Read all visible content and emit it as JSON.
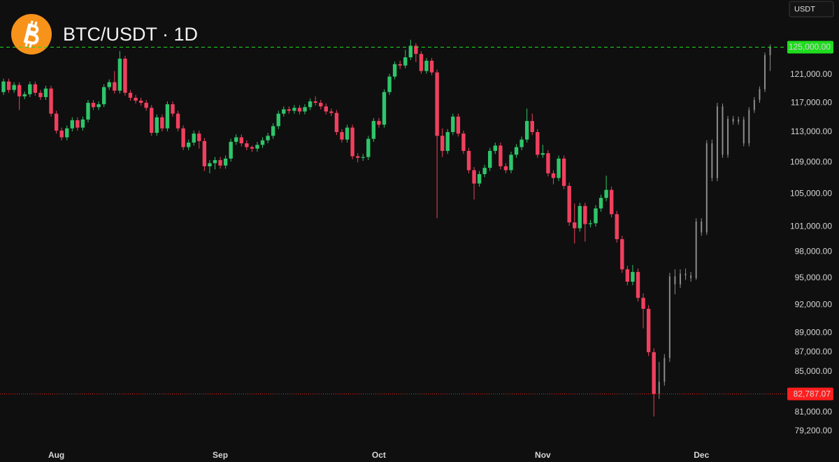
{
  "chart_data": {
    "type": "candlestick",
    "title": "BTC/USDT · 1D",
    "currency": "USDT",
    "yscale": "log",
    "grid": false,
    "ylim": [
      77700,
      132200
    ],
    "xlim": [
      -0.66,
      148.1
    ],
    "yticks": [
      {
        "value": 121000,
        "label": "121,000.00"
      },
      {
        "value": 117000,
        "label": "117,000.00"
      },
      {
        "value": 113000,
        "label": "113,000.00"
      },
      {
        "value": 109000,
        "label": "109,000.00"
      },
      {
        "value": 105000,
        "label": "105,000.00"
      },
      {
        "value": 101000,
        "label": "101,000.00"
      },
      {
        "value": 98000,
        "label": "98,000.00"
      },
      {
        "value": 95000,
        "label": "95,000.00"
      },
      {
        "value": 92000,
        "label": "92,000.00"
      },
      {
        "value": 89000,
        "label": "89,000.00"
      },
      {
        "value": 87000,
        "label": "87,000.00"
      },
      {
        "value": 85000,
        "label": "85,000.00"
      },
      {
        "value": 81000,
        "label": "81,000.00"
      },
      {
        "value": 79200,
        "label": "79,200.00"
      }
    ],
    "xticks": [
      {
        "value": 10,
        "label": "Aug"
      },
      {
        "value": 41,
        "label": "Sep"
      },
      {
        "value": 71,
        "label": "Oct"
      },
      {
        "value": 102,
        "label": "Nov"
      },
      {
        "value": 132,
        "label": "Dec"
      }
    ],
    "hlines": [
      {
        "value": 125000,
        "label": "125,000.00",
        "color": "#1fdc1f",
        "style": "dashed"
      },
      {
        "value": 82787.07,
        "label": "82,787.07",
        "color": "#ff1e1e",
        "style": "dotted"
      }
    ],
    "series": [
      {
        "up_color": "#2fc56a",
        "down_color": "#f0405e",
        "ohlc": [
          [
            118500,
            120400,
            118100,
            120000
          ],
          [
            120000,
            120400,
            118400,
            118800
          ],
          [
            118800,
            119900,
            118400,
            119500
          ],
          [
            119500,
            119900,
            116000,
            117900
          ],
          [
            117900,
            118600,
            117500,
            118200
          ],
          [
            118200,
            120000,
            117800,
            119600
          ],
          [
            119600,
            120000,
            118000,
            118400
          ],
          [
            118400,
            118800,
            117400,
            117800
          ],
          [
            117800,
            119400,
            117400,
            119000
          ],
          [
            119000,
            119400,
            115100,
            115500
          ],
          [
            115500,
            115900,
            112800,
            113200
          ],
          [
            113200,
            113600,
            111900,
            112300
          ],
          [
            112300,
            113900,
            111900,
            113500
          ],
          [
            113500,
            115000,
            113100,
            114600
          ],
          [
            114600,
            115000,
            113200,
            113600
          ],
          [
            113600,
            115100,
            113200,
            114700
          ],
          [
            114700,
            117400,
            114300,
            117000
          ],
          [
            117000,
            117400,
            116000,
            116400
          ],
          [
            116400,
            117200,
            116000,
            116800
          ],
          [
            116800,
            119600,
            116400,
            119200
          ],
          [
            119200,
            120300,
            118800,
            119900
          ],
          [
            119900,
            121500,
            118300,
            118700
          ],
          [
            118700,
            124400,
            118300,
            123300
          ],
          [
            123300,
            123700,
            118000,
            118400
          ],
          [
            118400,
            118800,
            117300,
            117700
          ],
          [
            117700,
            118100,
            116900,
            117300
          ],
          [
            117300,
            117700,
            116600,
            117000
          ],
          [
            117000,
            117400,
            115900,
            116300
          ],
          [
            116300,
            116700,
            112500,
            112900
          ],
          [
            112900,
            115400,
            112500,
            115000
          ],
          [
            115000,
            115400,
            113100,
            113500
          ],
          [
            113500,
            117200,
            113100,
            116800
          ],
          [
            116800,
            117200,
            115100,
            115500
          ],
          [
            115500,
            115900,
            113100,
            113500
          ],
          [
            113500,
            113900,
            110600,
            111000
          ],
          [
            111000,
            112000,
            110600,
            111600
          ],
          [
            111600,
            113200,
            111200,
            112800
          ],
          [
            112800,
            113200,
            110800,
            111800
          ],
          [
            111800,
            112200,
            107900,
            108500
          ],
          [
            108500,
            109300,
            107600,
            108900
          ],
          [
            108900,
            109700,
            108100,
            109300
          ],
          [
            109300,
            109700,
            108200,
            108600
          ],
          [
            108600,
            109900,
            108200,
            109500
          ],
          [
            109500,
            112100,
            109100,
            111700
          ],
          [
            111700,
            112700,
            111300,
            112300
          ],
          [
            112300,
            112700,
            111100,
            111500
          ],
          [
            111500,
            111900,
            110600,
            111000
          ],
          [
            111000,
            111200,
            110400,
            110800
          ],
          [
            110800,
            111700,
            110400,
            111300
          ],
          [
            111300,
            112300,
            110900,
            111900
          ],
          [
            111900,
            112900,
            111500,
            112500
          ],
          [
            112500,
            114200,
            112100,
            113800
          ],
          [
            113800,
            115900,
            113400,
            115500
          ],
          [
            115500,
            116500,
            115100,
            116100
          ],
          [
            116100,
            116500,
            115500,
            115900
          ],
          [
            115900,
            116700,
            115500,
            116300
          ],
          [
            116300,
            116700,
            115400,
            115800
          ],
          [
            115800,
            116800,
            115400,
            116400
          ],
          [
            116400,
            117600,
            116000,
            117200
          ],
          [
            117200,
            117900,
            116600,
            117000
          ],
          [
            117000,
            117400,
            116100,
            116500
          ],
          [
            116500,
            116900,
            115400,
            115800
          ],
          [
            115800,
            116200,
            115200,
            115600
          ],
          [
            115600,
            116000,
            112600,
            113000
          ],
          [
            113000,
            113400,
            111600,
            112000
          ],
          [
            112000,
            114000,
            111600,
            113600
          ],
          [
            113600,
            114000,
            109400,
            109800
          ],
          [
            109800,
            110200,
            109000,
            109600
          ],
          [
            109600,
            110100,
            109200,
            109700
          ],
          [
            109700,
            112500,
            109300,
            112100
          ],
          [
            112100,
            114900,
            111700,
            114500
          ],
          [
            114500,
            114900,
            113600,
            114000
          ],
          [
            114000,
            118900,
            113600,
            118500
          ],
          [
            118500,
            121100,
            118100,
            120700
          ],
          [
            120700,
            122900,
            120300,
            122500
          ],
          [
            122500,
            123000,
            121800,
            122300
          ],
          [
            122300,
            124600,
            121900,
            123500
          ],
          [
            123500,
            126100,
            123100,
            125200
          ],
          [
            125200,
            125600,
            122800,
            124000
          ],
          [
            124000,
            124400,
            121100,
            121500
          ],
          [
            121500,
            123400,
            121100,
            123000
          ],
          [
            123000,
            123400,
            120900,
            121300
          ],
          [
            121300,
            121700,
            102000,
            112500
          ],
          [
            112500,
            113500,
            109700,
            110500
          ],
          [
            110500,
            113400,
            110100,
            113000
          ],
          [
            113000,
            115500,
            112600,
            115100
          ],
          [
            115100,
            115500,
            112400,
            112800
          ],
          [
            112800,
            113200,
            110100,
            110500
          ],
          [
            110500,
            110900,
            107600,
            108000
          ],
          [
            108000,
            108400,
            104300,
            106300
          ],
          [
            106300,
            107900,
            105900,
            107500
          ],
          [
            107500,
            108700,
            107100,
            108300
          ],
          [
            108300,
            110900,
            107900,
            110500
          ],
          [
            110500,
            111600,
            110100,
            111200
          ],
          [
            111200,
            111600,
            108100,
            108500
          ],
          [
            108500,
            108900,
            107600,
            108000
          ],
          [
            108000,
            110400,
            107600,
            110000
          ],
          [
            110000,
            111400,
            109600,
            111000
          ],
          [
            111000,
            112400,
            110600,
            112000
          ],
          [
            112000,
            116200,
            111600,
            114500
          ],
          [
            114500,
            115500,
            112600,
            113000
          ],
          [
            113000,
            113400,
            109600,
            110000
          ],
          [
            110000,
            111300,
            109600,
            110200
          ],
          [
            110200,
            110600,
            107200,
            107600
          ],
          [
            107600,
            108000,
            106200,
            107000
          ],
          [
            107000,
            109900,
            106600,
            109500
          ],
          [
            109500,
            109900,
            105600,
            106000
          ],
          [
            106000,
            106400,
            101100,
            101500
          ],
          [
            101500,
            103800,
            99000,
            100800
          ],
          [
            100800,
            103900,
            100400,
            103500
          ],
          [
            103500,
            103900,
            99200,
            101300
          ],
          [
            101300,
            101800,
            100900,
            101400
          ],
          [
            101400,
            103600,
            101000,
            103200
          ],
          [
            103200,
            104900,
            102800,
            104500
          ],
          [
            104500,
            107300,
            104100,
            105500
          ],
          [
            105500,
            105900,
            102100,
            102500
          ],
          [
            102500,
            102900,
            99100,
            99500
          ],
          [
            99500,
            99900,
            95600,
            96000
          ],
          [
            96000,
            96400,
            94200,
            94600
          ],
          [
            94600,
            96500,
            94200,
            95700
          ],
          [
            95700,
            96100,
            92400,
            92800
          ],
          [
            92800,
            93300,
            89500,
            91600
          ],
          [
            91600,
            92000,
            86600,
            87000
          ],
          [
            87000,
            87400,
            80600,
            82787
          ],
          null,
          null,
          null,
          null,
          null,
          null,
          null,
          null,
          null,
          null,
          null,
          null,
          null,
          null,
          null,
          null,
          null,
          null,
          null,
          null,
          null,
          null
        ]
      },
      {
        "color": "#8c8c8c",
        "ohlc": [
          null,
          null,
          null,
          null,
          null,
          null,
          null,
          null,
          null,
          null,
          null,
          null,
          null,
          null,
          null,
          null,
          null,
          null,
          null,
          null,
          null,
          null,
          null,
          null,
          null,
          null,
          null,
          null,
          null,
          null,
          null,
          null,
          null,
          null,
          null,
          null,
          null,
          null,
          null,
          null,
          null,
          null,
          null,
          null,
          null,
          null,
          null,
          null,
          null,
          null,
          null,
          null,
          null,
          null,
          null,
          null,
          null,
          null,
          null,
          null,
          null,
          null,
          null,
          null,
          null,
          null,
          null,
          null,
          null,
          null,
          null,
          null,
          null,
          null,
          null,
          null,
          null,
          null,
          null,
          null,
          null,
          null,
          null,
          null,
          null,
          null,
          null,
          null,
          null,
          null,
          null,
          null,
          null,
          null,
          null,
          null,
          null,
          null,
          null,
          null,
          null,
          null,
          null,
          null,
          null,
          null,
          null,
          null,
          null,
          null,
          null,
          null,
          null,
          null,
          null,
          null,
          null,
          null,
          null,
          null,
          null,
          null,
          null,
          null,
          [
            82787,
            86000,
            82300,
            84000
          ],
          [
            84000,
            86800,
            83600,
            86400
          ],
          [
            86400,
            95600,
            86000,
            95200
          ],
          [
            95200,
            96000,
            93200,
            94300
          ],
          [
            94300,
            96000,
            93900,
            95500
          ],
          [
            95500,
            96100,
            94800,
            95300
          ],
          [
            95300,
            95700,
            94600,
            95000
          ],
          [
            95000,
            102000,
            94800,
            101600
          ],
          [
            101600,
            102000,
            99900,
            100300
          ],
          [
            100300,
            111900,
            100000,
            111500
          ],
          [
            111500,
            112000,
            106600,
            107000
          ],
          [
            107000,
            117000,
            106600,
            116500
          ],
          [
            116500,
            116900,
            109600,
            110000
          ],
          [
            110000,
            115200,
            109600,
            114800
          ],
          [
            114800,
            115200,
            114000,
            114400
          ],
          [
            114400,
            115100,
            114000,
            114700
          ],
          [
            114700,
            115100,
            111100,
            111500
          ],
          [
            111500,
            116400,
            111100,
            116000
          ],
          [
            116000,
            117800,
            115600,
            117400
          ],
          [
            117400,
            119300,
            117000,
            118900
          ],
          [
            118900,
            124200,
            118500,
            123800
          ],
          [
            123800,
            125400,
            121500,
            125000
          ]
        ]
      }
    ]
  }
}
